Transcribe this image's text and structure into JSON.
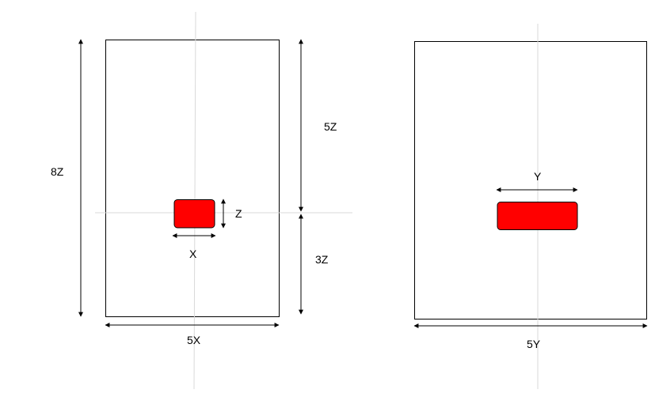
{
  "labels": {
    "left_height": "8Z",
    "left_upper": "5Z",
    "left_lower": "3Z",
    "left_width": "5X",
    "small_height": "Z",
    "small_width": "X",
    "right_width": "5Y",
    "right_small_width": "Y"
  },
  "colors": {
    "block": "#ff0000",
    "guide": "#d9d9d9",
    "line": "#000000"
  }
}
